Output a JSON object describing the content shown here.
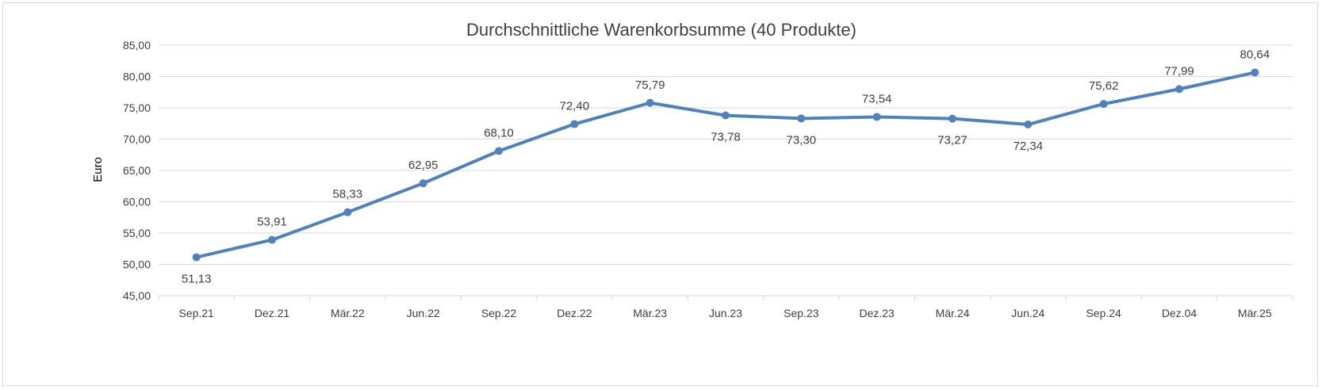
{
  "chart_data": {
    "type": "line",
    "title": "Durchschnittliche Warenkorbsumme (40 Produkte)",
    "xlabel": "",
    "ylabel": "Euro",
    "categories": [
      "Sep.21",
      "Dez.21",
      "Mär.22",
      "Jun.22",
      "Sep.22",
      "Dez.22",
      "Mär.23",
      "Jun.23",
      "Sep.23",
      "Dez.23",
      "Mär.24",
      "Jun.24",
      "Sep.24",
      "Dez.04",
      "Mär.25"
    ],
    "series": [
      {
        "values": [
          51.13,
          53.91,
          58.33,
          62.95,
          68.1,
          72.4,
          75.79,
          73.78,
          73.3,
          73.54,
          73.27,
          72.34,
          75.62,
          77.99,
          80.64
        ],
        "data_labels": [
          "51,13",
          "53,91",
          "58,33",
          "62,95",
          "68,10",
          "72,40",
          "75,79",
          "73,78",
          "73,30",
          "73,54",
          "73,27",
          "72,34",
          "75,62",
          "77,99",
          "80,64"
        ],
        "label_positions": [
          "below",
          "above",
          "above",
          "above",
          "above",
          "above",
          "above",
          "below",
          "below",
          "above",
          "below",
          "below",
          "above",
          "above",
          "above"
        ],
        "color": "#4f81bd"
      }
    ],
    "ylim": [
      45,
      85
    ],
    "yticks": [
      45,
      50,
      55,
      60,
      65,
      70,
      75,
      80,
      85
    ],
    "ytick_labels": [
      "45,00",
      "50,00",
      "55,00",
      "60,00",
      "65,00",
      "70,00",
      "75,00",
      "80,00",
      "85,00"
    ],
    "grid": true,
    "legend": "none",
    "gridColor": "#d9d9d9"
  }
}
